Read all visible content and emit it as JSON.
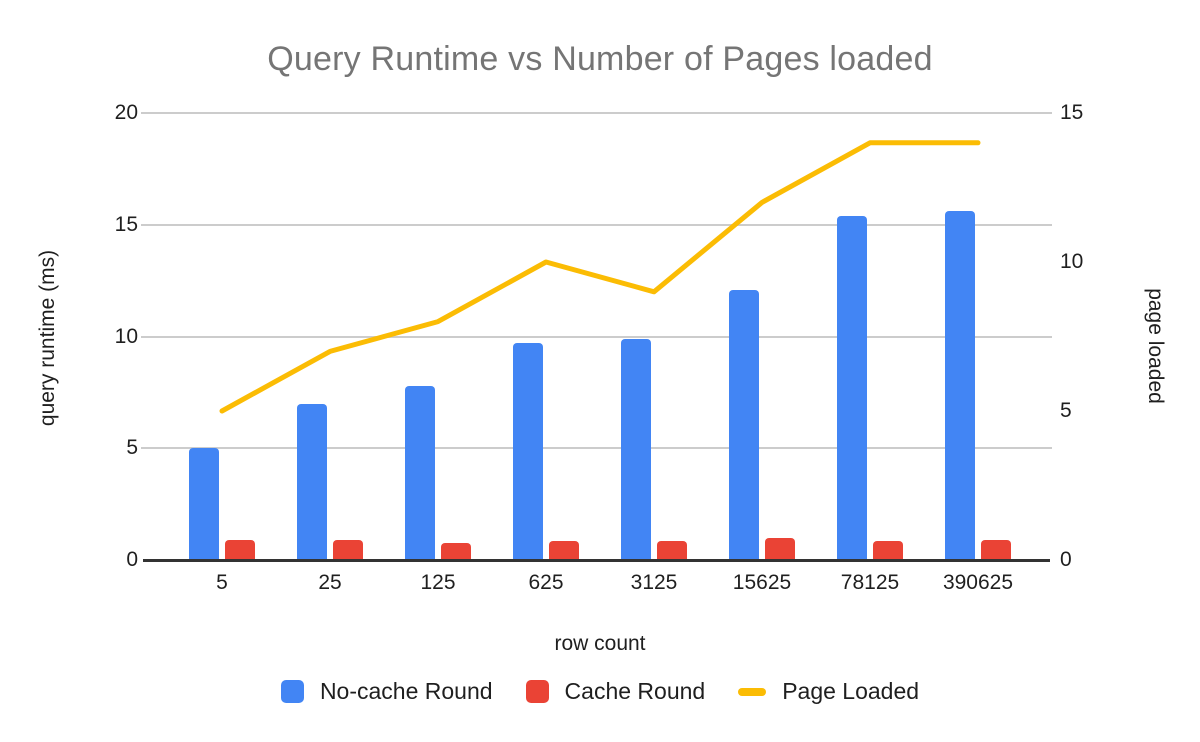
{
  "chart_data": {
    "type": "combo",
    "title": "Query Runtime vs Number of Pages loaded",
    "xlabel": "row count",
    "ylabel_left": "query runtime (ms)",
    "ylabel_right": "page loaded",
    "categories": [
      "5",
      "25",
      "125",
      "625",
      "3125",
      "15625",
      "78125",
      "390625"
    ],
    "series": [
      {
        "name": "No-cache Round",
        "type": "bar",
        "axis": "left",
        "color": "#4285F4",
        "values": [
          5,
          7,
          7.8,
          9.7,
          9.9,
          12.1,
          15.4,
          15.6
        ]
      },
      {
        "name": "Cache Round",
        "type": "bar",
        "axis": "left",
        "color": "#EA4335",
        "values": [
          0.9,
          0.9,
          0.75,
          0.85,
          0.85,
          1.0,
          0.85,
          0.9
        ]
      },
      {
        "name": "Page Loaded",
        "type": "line",
        "axis": "right",
        "color": "#FBBC04",
        "values": [
          5,
          7,
          8,
          10,
          9,
          12,
          14,
          14
        ]
      }
    ],
    "axes": {
      "left": {
        "min": 0,
        "max": 20,
        "ticks": [
          0,
          5,
          10,
          15,
          20
        ]
      },
      "right": {
        "min": 0,
        "max": 15,
        "ticks": [
          0,
          5,
          10,
          15
        ]
      }
    },
    "grid": true,
    "legend_position": "bottom"
  },
  "colors": {
    "title_text": "#757575",
    "axis_text": "#1f1f1f",
    "gridline": "#cccccc",
    "axis_line": "#333333",
    "background": "#ffffff"
  }
}
